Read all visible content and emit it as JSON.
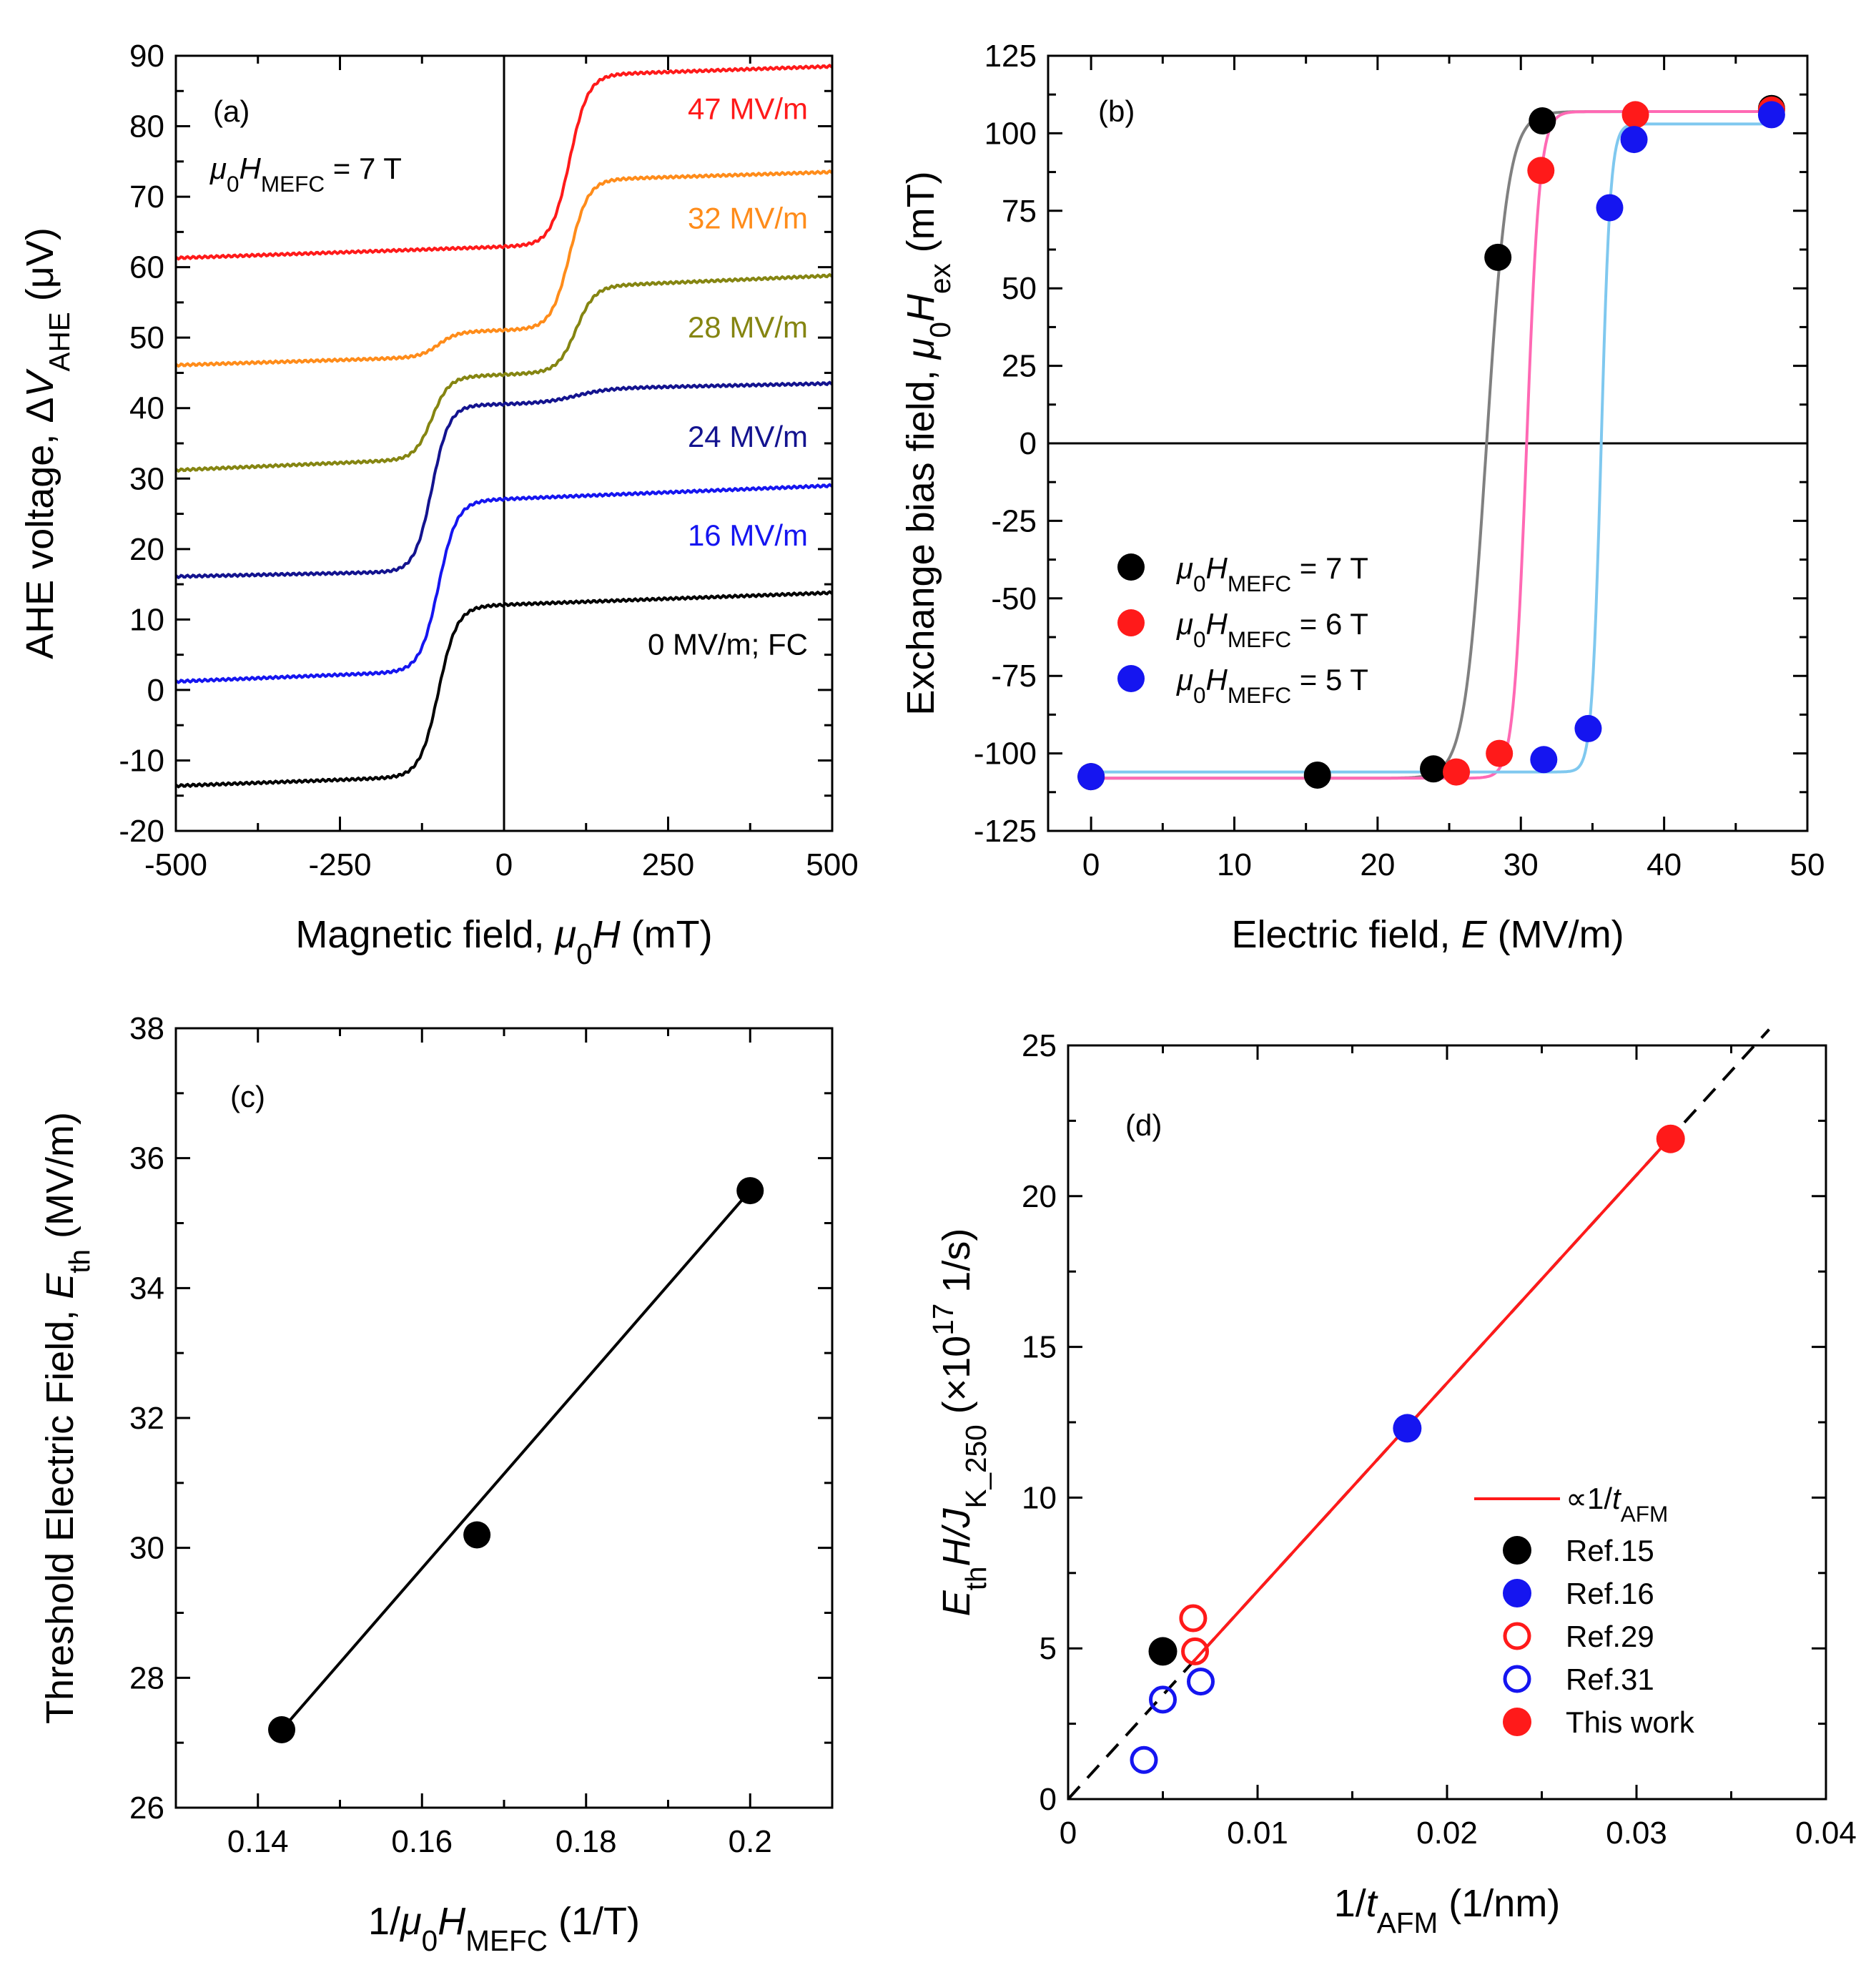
{
  "chart_data": [
    {
      "panel": "a",
      "type": "line",
      "tag": "(a)",
      "condition": {
        "mu": "μ",
        "sub0": "0",
        "H": "H",
        "sub": "MEFC",
        "rest": " = 7 T"
      },
      "xlabel": {
        "pre": "Magnetic field, ",
        "mu": "μ",
        "sub0": "0",
        "H": "H",
        "post": " (mT)"
      },
      "ylabel": {
        "pre": "AHE voltage, Δ",
        "V": "V",
        "sub": "AHE",
        "post": " (μV)"
      },
      "xlim": [
        -500,
        500
      ],
      "ylim": [
        -20,
        90
      ],
      "xticks": [
        -500,
        -250,
        0,
        250,
        500
      ],
      "yticks": [
        -20,
        -10,
        0,
        10,
        20,
        30,
        40,
        50,
        60,
        70,
        80,
        90
      ],
      "series": [
        {
          "name": "0 MV/m; FC",
          "color": "#000000",
          "base": -13.6,
          "low": 12,
          "high": 13.8,
          "hs": [
            {
              "c": -100,
              "h": 24,
              "w": 14
            }
          ],
          "label_y": 5
        },
        {
          "name": "16 MV/m",
          "color": "#1515f0",
          "base": 1.2,
          "low": 27,
          "high": 29,
          "hs": [
            {
              "c": -100,
              "h": 24,
              "w": 14
            }
          ],
          "label_y": 20.5
        },
        {
          "name": "24 MV/m",
          "color": "#13138f",
          "base": 16.1,
          "low": 40.5,
          "high": 43.5,
          "hs": [
            {
              "c": -110,
              "h": 23.5,
              "w": 13
            },
            {
              "c": 110,
              "h": 2,
              "w": 25
            }
          ],
          "label_y": 34.5
        },
        {
          "name": "28 MV/m",
          "color": "#858511",
          "base": 31.2,
          "low": 44.5,
          "high": 58.8,
          "hs": [
            {
              "c": -110,
              "h": 11.5,
              "w": 13
            },
            {
              "c": 110,
              "h": 12,
              "w": 14
            }
          ],
          "label_y": 50
        },
        {
          "name": "32 MV/m",
          "color": "#ff8c1a",
          "base": 46.1,
          "low": 51,
          "high": 73.5,
          "hs": [
            {
              "c": -100,
              "h": 3.5,
              "w": 14
            },
            {
              "c": 100,
              "h": 21,
              "w": 14
            }
          ],
          "label_y": 65.5
        },
        {
          "name": "47 MV/m",
          "color": "#ff1a1a",
          "base": 61.3,
          "low": 62.8,
          "high": 88.5,
          "hs": [
            {
              "c": 100,
              "h": 24,
              "w": 14
            }
          ],
          "label_y": 81
        }
      ]
    },
    {
      "panel": "b",
      "type": "scatter",
      "tag": "(b)",
      "xlabel": {
        "pre": "Electric field, ",
        "E": "E",
        "post": " (MV/m)"
      },
      "ylabel": {
        "pre": "Exchange bias field, ",
        "mu": "μ",
        "sub0": "0",
        "H": "H",
        "sub": "ex",
        "post": " (mT)"
      },
      "xlim": [
        -3,
        50
      ],
      "ylim": [
        -125,
        125
      ],
      "xticks": [
        0,
        10,
        20,
        30,
        40,
        50
      ],
      "yticks": [
        -125,
        -100,
        -75,
        -50,
        -25,
        0,
        25,
        50,
        75,
        100,
        125
      ],
      "series": [
        {
          "name": "μ0HMEFC = 7 T",
          "legend": {
            "mu": "μ",
            "sub0": "0",
            "H": "H",
            "sub": "MEFC",
            "rest": " = 7 T"
          },
          "color": "#000000",
          "fit_color": "#808080",
          "fit": {
            "low": -108,
            "high": 107,
            "e0": 27.6,
            "w": 0.75
          },
          "points": [
            [
              0,
              -107.5
            ],
            [
              15.8,
              -107
            ],
            [
              23.9,
              -105
            ],
            [
              28.4,
              60
            ],
            [
              31.5,
              104
            ],
            [
              47.5,
              108
            ]
          ]
        },
        {
          "name": "μ0HMEFC = 6 T",
          "legend": {
            "mu": "μ",
            "sub0": "0",
            "H": "H",
            "sub": "MEFC",
            "rest": " = 6 T"
          },
          "color": "#ff1a1a",
          "fit_color": "#ff69b4",
          "fit": {
            "low": -108,
            "high": 107,
            "e0": 30.4,
            "w": 0.45
          },
          "points": [
            [
              25.5,
              -106
            ],
            [
              28.5,
              -100
            ],
            [
              31.4,
              88
            ],
            [
              38.0,
              106
            ],
            [
              47.5,
              107.5
            ]
          ]
        },
        {
          "name": "μ0HMEFC = 5 T",
          "legend": {
            "mu": "μ",
            "sub0": "0",
            "H": "H",
            "sub": "MEFC",
            "rest": " = 5 T"
          },
          "color": "#1515f0",
          "fit_color": "#7fc8ef",
          "fit": {
            "low": -106,
            "high": 103,
            "e0": 35.6,
            "w": 0.32
          },
          "points": [
            [
              0,
              -107.5
            ],
            [
              31.6,
              -102
            ],
            [
              34.7,
              -92
            ],
            [
              36.2,
              76
            ],
            [
              37.9,
              98
            ],
            [
              47.5,
              106
            ]
          ]
        }
      ]
    },
    {
      "panel": "c",
      "type": "scatter",
      "tag": "(c)",
      "xlabel": {
        "pre": "1/",
        "mu": "μ",
        "sub0": "0",
        "H": "H",
        "sub": "MEFC",
        "post": " (1/T)"
      },
      "ylabel": {
        "pre": "Threshold Electric Field, ",
        "E": "E",
        "sub": "th",
        "post": " (MV/m)"
      },
      "xlim": [
        0.13,
        0.21
      ],
      "ylim": [
        26,
        38
      ],
      "xticks": [
        0.14,
        0.16,
        0.18,
        0.2
      ],
      "yticks": [
        26,
        28,
        30,
        32,
        34,
        36,
        38
      ],
      "points": [
        [
          0.1429,
          27.2
        ],
        [
          0.1667,
          30.2
        ],
        [
          0.2,
          35.5
        ]
      ],
      "fit_line": [
        [
          0.1429,
          27.2
        ],
        [
          0.2,
          35.5
        ]
      ]
    },
    {
      "panel": "d",
      "type": "scatter",
      "tag": "(d)",
      "xlabel": {
        "pre": "1/",
        "t": "t",
        "sub": "AFM",
        "post": " (1/nm)"
      },
      "ylabel": {
        "E": "E",
        "sub": "th",
        "H": "H/J",
        "sub2": "K_250",
        "pre2": " (×10",
        "sup": "17",
        "post": " 1/s)"
      },
      "xlim": [
        0,
        0.04
      ],
      "ylim": [
        0,
        25
      ],
      "xticks": [
        0,
        0.01,
        0.02,
        0.03,
        0.04
      ],
      "xtick_labels": [
        "0",
        "0.01",
        "0.02",
        "0.03",
        "0.04"
      ],
      "yticks": [
        0,
        5,
        10,
        15,
        20,
        25
      ],
      "fit_legend": {
        "pre": "∝1/",
        "t": "t",
        "sub": "AFM"
      },
      "fit_slope": 690,
      "fit_solid": [
        0.0065,
        0.0318
      ],
      "fit_dashed": [
        0,
        0.037
      ],
      "series": [
        {
          "name": "Ref.15",
          "color": "#000000",
          "filled": true,
          "points": [
            [
              0.005,
              4.9
            ]
          ]
        },
        {
          "name": "Ref.16",
          "color": "#1515f0",
          "filled": true,
          "points": [
            [
              0.0179,
              12.3
            ]
          ]
        },
        {
          "name": "Ref.29",
          "color": "#ff1a1a",
          "filled": false,
          "points": [
            [
              0.0066,
              6.0
            ],
            [
              0.0067,
              4.9
            ]
          ]
        },
        {
          "name": "Ref.31",
          "color": "#1515f0",
          "filled": false,
          "points": [
            [
              0.004,
              1.3
            ],
            [
              0.005,
              3.3
            ],
            [
              0.007,
              3.9
            ]
          ]
        },
        {
          "name": "This work",
          "color": "#ff1a1a",
          "filled": true,
          "points": [
            [
              0.0318,
              21.9
            ]
          ]
        }
      ]
    }
  ]
}
